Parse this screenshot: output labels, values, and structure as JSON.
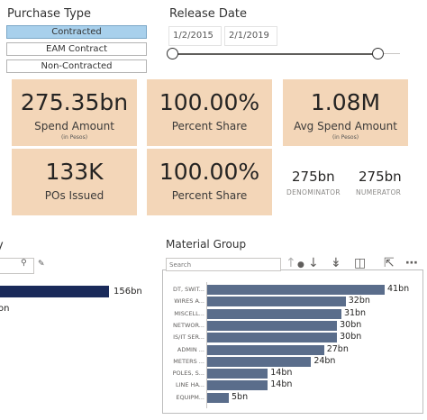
{
  "purchase_type": {
    "title": "Purchase Type",
    "options": [
      {
        "label": "Contracted",
        "selected": true
      },
      {
        "label": "EAM Contract",
        "selected": false
      },
      {
        "label": "Non-Contracted",
        "selected": false
      }
    ]
  },
  "release_date": {
    "title": "Release Date",
    "start": "1/2/2015",
    "end": "2/1/2019"
  },
  "cards": {
    "spend_amount": {
      "value": "275.35bn",
      "label": "Spend Amount",
      "sub": "(in Pesos)"
    },
    "percent_share_1": {
      "value": "100.00%",
      "label": "Percent Share"
    },
    "avg_spend": {
      "value": "1.08M",
      "label": "Avg Spend Amount",
      "sub": "(in Pesos)"
    },
    "pos_issued": {
      "value": "133K",
      "label": "POs Issued"
    },
    "percent_share_2": {
      "value": "100.00%",
      "label": "Percent Share"
    }
  },
  "ratio": {
    "denominator": {
      "value": "275bn",
      "label": "DENOMINATOR"
    },
    "numerator": {
      "value": "275bn",
      "label": "NUMERATOR"
    }
  },
  "left_visual": {
    "title": "y",
    "bar_value": "156bn",
    "category": "on"
  },
  "material_group": {
    "title": "Material Group",
    "search_placeholder": "Search",
    "toolbar_icons": [
      "sort-up-icon",
      "drill-down-icon",
      "expand-all-down-icon",
      "hierarchy-icon",
      "focus-mode-icon",
      "more-options-icon"
    ],
    "chart_data": {
      "type": "bar",
      "orientation": "horizontal",
      "categories": [
        "DT, SWIT...",
        "WIRES A...",
        "MISCELL...",
        "NETWOR...",
        "IS/IT SER...",
        "ADMIN ...",
        "METERS ...",
        "POLES, S...",
        "LINE HA...",
        "EQUIPM..."
      ],
      "values": [
        41,
        32,
        31,
        30,
        30,
        27,
        24,
        14,
        14,
        5
      ],
      "labels": [
        "41bn",
        "32bn",
        "31bn",
        "30bn",
        "30bn",
        "27bn",
        "24bn",
        "14bn",
        "14bn",
        "5bn"
      ],
      "color": "#5a6d8b"
    }
  }
}
